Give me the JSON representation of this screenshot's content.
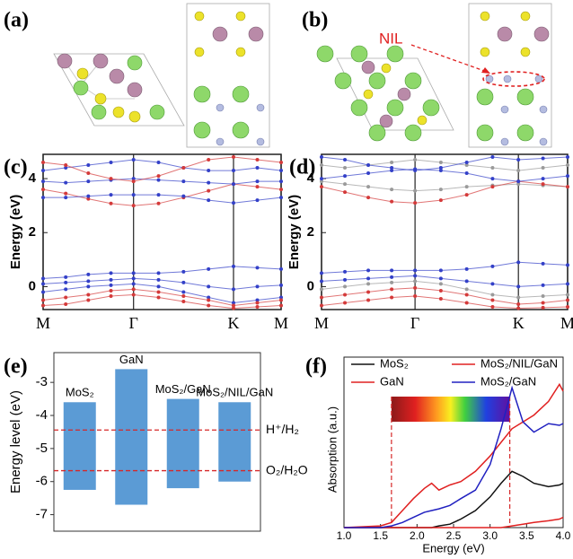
{
  "structures": {
    "a_label": "(a)",
    "b_label": "(b)",
    "nil_label": "NIL"
  },
  "chart_data": [
    {
      "type": "band",
      "panel_label": "(c)",
      "ylabel": "Energy (eV)",
      "x": [
        0,
        0.095,
        0.19,
        0.285,
        0.38,
        0.485,
        0.59,
        0.695,
        0.8,
        0.9,
        1.0
      ],
      "xlim": [
        0,
        1
      ],
      "xticks": [
        {
          "value": 0,
          "label": "M"
        },
        {
          "value": 0.38,
          "label": "Γ"
        },
        {
          "value": 0.8,
          "label": "K"
        },
        {
          "value": 1.0,
          "label": "M"
        }
      ],
      "ylim": [
        -0.85,
        4.9
      ],
      "yticks": [
        0,
        2,
        4
      ],
      "bands": [
        {
          "color": "#d43a3a",
          "values": [
            3.6,
            3.45,
            3.25,
            3.08,
            3.0,
            3.08,
            3.3,
            3.55,
            3.8,
            3.7,
            3.6
          ]
        },
        {
          "color": "#3340c8",
          "values": [
            3.3,
            3.3,
            3.35,
            3.4,
            3.4,
            3.4,
            3.35,
            3.2,
            3.1,
            3.2,
            3.3
          ]
        },
        {
          "color": "#3340c8",
          "values": [
            3.9,
            3.85,
            3.9,
            3.95,
            4.0,
            3.95,
            3.9,
            3.85,
            3.8,
            3.9,
            3.9
          ]
        },
        {
          "color": "#3340c8",
          "values": [
            4.3,
            4.4,
            4.5,
            4.6,
            4.7,
            4.6,
            4.4,
            4.3,
            4.3,
            4.4,
            4.3
          ]
        },
        {
          "color": "#d43a3a",
          "values": [
            4.6,
            4.5,
            4.2,
            4.0,
            3.9,
            4.1,
            4.4,
            4.7,
            4.8,
            4.7,
            4.6
          ]
        },
        {
          "color": "#3340c8",
          "values": [
            0.3,
            0.35,
            0.45,
            0.5,
            0.5,
            0.5,
            0.55,
            0.65,
            0.75,
            0.7,
            0.65
          ]
        },
        {
          "color": "#3340c8",
          "values": [
            0.1,
            0.15,
            0.2,
            0.25,
            0.3,
            0.25,
            0.15,
            0.0,
            -0.1,
            0.0,
            0.05
          ]
        },
        {
          "color": "#3340c8",
          "values": [
            -0.2,
            -0.1,
            0.0,
            0.05,
            0.1,
            0.0,
            -0.2,
            -0.4,
            -0.6,
            -0.5,
            -0.4
          ]
        },
        {
          "color": "#d43a3a",
          "values": [
            -0.5,
            -0.4,
            -0.3,
            -0.15,
            -0.1,
            -0.2,
            -0.35,
            -0.5,
            -0.7,
            -0.6,
            -0.5
          ]
        },
        {
          "color": "#d43a3a",
          "values": [
            -0.7,
            -0.65,
            -0.5,
            -0.35,
            -0.3,
            -0.4,
            -0.55,
            -0.7,
            -0.8,
            -0.75,
            -0.7
          ]
        }
      ]
    },
    {
      "type": "band",
      "panel_label": "(d)",
      "ylabel": "Energy (eV)",
      "x": [
        0,
        0.095,
        0.19,
        0.285,
        0.38,
        0.485,
        0.59,
        0.695,
        0.8,
        0.9,
        1.0
      ],
      "xlim": [
        0,
        1
      ],
      "xticks": [
        {
          "value": 0,
          "label": "M"
        },
        {
          "value": 0.38,
          "label": "Γ"
        },
        {
          "value": 0.8,
          "label": "K"
        },
        {
          "value": 1.0,
          "label": "M"
        }
      ],
      "ylim": [
        -0.85,
        4.9
      ],
      "yticks": [
        0,
        2,
        4
      ],
      "bands": [
        {
          "color": "#9a9a9a",
          "values": [
            3.9,
            3.8,
            3.7,
            3.6,
            3.55,
            3.6,
            3.7,
            3.75,
            3.8,
            3.75,
            3.7
          ]
        },
        {
          "color": "#d43a3a",
          "values": [
            3.7,
            3.5,
            3.3,
            3.15,
            3.1,
            3.2,
            3.4,
            3.7,
            3.9,
            3.8,
            3.7
          ]
        },
        {
          "color": "#3340c8",
          "values": [
            4.0,
            4.1,
            4.2,
            4.3,
            4.35,
            4.3,
            4.2,
            4.0,
            3.9,
            4.0,
            4.1
          ]
        },
        {
          "color": "#9a9a9a",
          "values": [
            4.5,
            4.4,
            4.5,
            4.6,
            4.7,
            4.6,
            4.5,
            4.4,
            4.3,
            4.4,
            4.5
          ]
        },
        {
          "color": "#3340c8",
          "values": [
            4.8,
            4.7,
            4.5,
            4.4,
            4.3,
            4.4,
            4.6,
            4.8,
            4.7,
            4.75,
            4.8
          ]
        },
        {
          "color": "#3340c8",
          "values": [
            0.5,
            0.55,
            0.6,
            0.6,
            0.6,
            0.6,
            0.65,
            0.75,
            0.9,
            0.85,
            0.8
          ]
        },
        {
          "color": "#3340c8",
          "values": [
            0.2,
            0.25,
            0.3,
            0.35,
            0.4,
            0.3,
            0.2,
            0.1,
            0.0,
            0.05,
            0.1
          ]
        },
        {
          "color": "#9a9a9a",
          "values": [
            -0.1,
            0.0,
            0.1,
            0.15,
            0.2,
            0.1,
            -0.1,
            -0.3,
            -0.4,
            -0.35,
            -0.3
          ]
        },
        {
          "color": "#d43a3a",
          "values": [
            -0.4,
            -0.3,
            -0.2,
            -0.1,
            -0.05,
            -0.15,
            -0.3,
            -0.5,
            -0.65,
            -0.6,
            -0.5
          ]
        },
        {
          "color": "#d43a3a",
          "values": [
            -0.7,
            -0.6,
            -0.5,
            -0.4,
            -0.35,
            -0.45,
            -0.6,
            -0.75,
            -0.8,
            -0.78,
            -0.75
          ]
        }
      ]
    },
    {
      "type": "range_bar",
      "panel_label": "(e)",
      "ylabel": "Energy level (eV)",
      "categories": [
        "MoS₂",
        "GaN",
        "MoS₂/GaN",
        "MoS₂/NIL/GaN"
      ],
      "high": [
        -3.6,
        -2.6,
        -3.5,
        -3.6
      ],
      "low": [
        -6.25,
        -6.7,
        -6.2,
        -6.0
      ],
      "color": "#5b9bd5",
      "ylim": [
        -7.5,
        -2.1
      ],
      "yticks": [
        -3,
        -4,
        -5,
        -6,
        -7
      ],
      "reference_lines": [
        {
          "value": -4.44,
          "label": "H⁺/H₂"
        },
        {
          "value": -5.67,
          "label": "O₂/H₂O"
        }
      ],
      "reference_color": "#d62728"
    },
    {
      "type": "line",
      "panel_label": "(f)",
      "ylabel": "Absorption (a.u.)",
      "xlabel": "Energy (eV)",
      "x": [
        1.0,
        1.5,
        1.65,
        1.8,
        1.95,
        2.1,
        2.2,
        2.3,
        2.45,
        2.6,
        2.8,
        3.0,
        3.15,
        3.3,
        3.45,
        3.6,
        3.8,
        3.95,
        4.0
      ],
      "xlim": [
        1.0,
        4.0
      ],
      "xticks": [
        {
          "value": 1,
          "label": "1.0"
        },
        {
          "value": 1.5,
          "label": "1.5"
        },
        {
          "value": 2,
          "label": "2.0"
        },
        {
          "value": 2.5,
          "label": "2.5"
        },
        {
          "value": 3,
          "label": "3.0"
        },
        {
          "value": 3.5,
          "label": "3.5"
        },
        {
          "value": 4,
          "label": "4.0"
        }
      ],
      "ylim": [
        0,
        1
      ],
      "series": [
        {
          "name": "MoS₂",
          "color": "#111111",
          "values": [
            0,
            0,
            0,
            0,
            0,
            0,
            0,
            0.01,
            0.02,
            0.05,
            0.1,
            0.18,
            0.26,
            0.33,
            0.3,
            0.26,
            0.24,
            0.25,
            0.26
          ]
        },
        {
          "name": "GaN",
          "color": "#e02020",
          "values": [
            0,
            0,
            0,
            0,
            0,
            0,
            0,
            0,
            0,
            0,
            0,
            0,
            0,
            0.01,
            0.02,
            0.03,
            0.04,
            0.05,
            0.06
          ]
        },
        {
          "name": "MoS₂/NIL/GaN",
          "color": "#e02020",
          "values": [
            0.0,
            0.01,
            0.03,
            0.1,
            0.17,
            0.23,
            0.26,
            0.22,
            0.25,
            0.27,
            0.33,
            0.42,
            0.5,
            0.58,
            0.62,
            0.66,
            0.74,
            0.84,
            0.8
          ]
        },
        {
          "name": "MoS₂/GaN",
          "color": "#2020c0",
          "values": [
            0.0,
            0.0,
            0.01,
            0.03,
            0.06,
            0.09,
            0.1,
            0.11,
            0.13,
            0.17,
            0.22,
            0.37,
            0.58,
            0.82,
            0.62,
            0.56,
            0.61,
            0.6,
            0.61
          ]
        }
      ],
      "vlines": [
        1.65,
        3.27
      ],
      "vline_color": "#d62728",
      "legend": "top"
    }
  ]
}
